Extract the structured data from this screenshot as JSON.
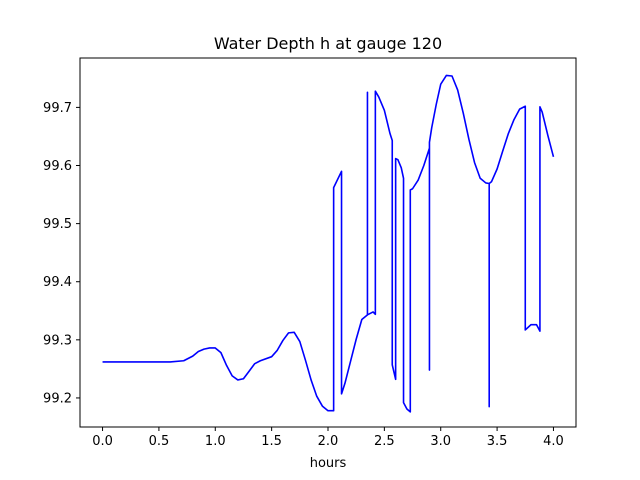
{
  "chart_data": {
    "type": "line",
    "title": "Water Depth h at gauge 120",
    "xlabel": "hours",
    "ylabel": "",
    "xlim": [
      -0.2,
      4.2
    ],
    "ylim": [
      99.15,
      99.785
    ],
    "xticks": [
      0.0,
      0.5,
      1.0,
      1.5,
      2.0,
      2.5,
      3.0,
      3.5,
      4.0
    ],
    "xtick_labels": [
      "0.0",
      "0.5",
      "1.0",
      "1.5",
      "2.0",
      "2.5",
      "3.0",
      "3.5",
      "4.0"
    ],
    "yticks": [
      99.2,
      99.3,
      99.4,
      99.5,
      99.6,
      99.7
    ],
    "ytick_labels": [
      "99.2",
      "99.3",
      "99.4",
      "99.5",
      "99.6",
      "99.7"
    ],
    "grid": false,
    "series": [
      {
        "color": "#0000ff",
        "x": [
          0.0,
          0.3,
          0.6,
          0.72,
          0.8,
          0.85,
          0.9,
          0.95,
          1.0,
          1.05,
          1.1,
          1.15,
          1.2,
          1.25,
          1.3,
          1.35,
          1.4,
          1.5,
          1.55,
          1.6,
          1.65,
          1.7,
          1.75,
          1.8,
          1.85,
          1.9,
          1.95,
          2.0,
          2.05,
          2.05,
          2.12,
          2.12,
          2.15,
          2.2,
          2.25,
          2.3,
          2.35,
          2.35,
          2.35,
          2.4,
          2.42,
          2.42,
          2.45,
          2.5,
          2.55,
          2.57,
          2.57,
          2.6,
          2.6,
          2.62,
          2.65,
          2.67,
          2.67,
          2.7,
          2.73,
          2.73,
          2.75,
          2.8,
          2.85,
          2.9,
          2.9,
          2.9,
          2.92,
          2.96,
          3.0,
          3.05,
          3.1,
          3.15,
          3.2,
          3.25,
          3.3,
          3.35,
          3.4,
          3.43,
          3.43,
          3.43,
          3.45,
          3.5,
          3.55,
          3.6,
          3.65,
          3.7,
          3.75,
          3.75,
          3.8,
          3.85,
          3.88,
          3.88,
          3.9,
          3.95,
          4.0
        ],
        "y": [
          99.262,
          99.262,
          99.262,
          99.264,
          99.272,
          99.28,
          99.284,
          99.286,
          99.286,
          99.278,
          99.256,
          99.238,
          99.231,
          99.233,
          99.246,
          99.259,
          99.264,
          99.271,
          99.282,
          99.299,
          99.312,
          99.313,
          99.297,
          99.265,
          99.231,
          99.203,
          99.186,
          99.178,
          99.178,
          99.562,
          99.59,
          99.207,
          99.225,
          99.263,
          99.301,
          99.335,
          99.343,
          99.726,
          99.343,
          99.348,
          99.344,
          99.728,
          99.718,
          99.695,
          99.655,
          99.643,
          99.257,
          99.232,
          99.612,
          99.61,
          99.596,
          99.578,
          99.192,
          99.181,
          99.176,
          99.558,
          99.56,
          99.575,
          99.6,
          99.63,
          99.248,
          99.64,
          99.665,
          99.705,
          99.74,
          99.755,
          99.754,
          99.73,
          99.69,
          99.645,
          99.605,
          99.578,
          99.57,
          99.569,
          99.185,
          99.569,
          99.572,
          99.594,
          99.625,
          99.655,
          99.679,
          99.697,
          99.702,
          99.317,
          99.326,
          99.326,
          99.315,
          99.701,
          99.692,
          99.652,
          99.615
        ]
      }
    ]
  }
}
